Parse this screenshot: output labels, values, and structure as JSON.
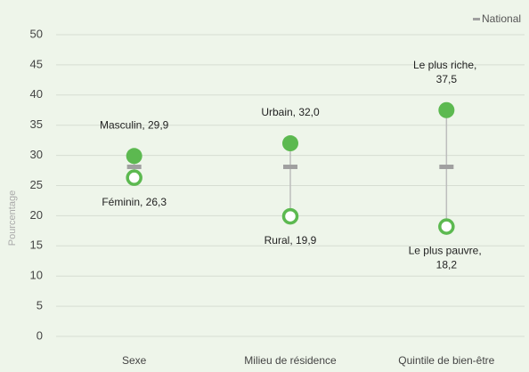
{
  "chart_data": {
    "type": "dot",
    "y_label": "Pourcentage",
    "categories": [
      "Sexe",
      "Milieu de résidence",
      "Quintile de bien-être"
    ],
    "high": {
      "color": "#5cb950",
      "values": [
        29.9,
        32.0,
        37.5
      ],
      "value_labels": [
        "Masculin, 29,9",
        "Urbain, 32,0",
        "Le plus riche, 37,5"
      ]
    },
    "low": {
      "color": "#5cb950",
      "values": [
        26.3,
        19.9,
        18.2
      ],
      "value_labels": [
        "Féminin, 26,3",
        "Rural, 19,9",
        "Le plus pauvre, 18,2"
      ]
    },
    "series": [
      {
        "name": "National",
        "color": "#a0a0a0",
        "values": [
          28.1,
          28.1,
          28.1
        ]
      }
    ],
    "ylim": [
      0,
      50
    ],
    "yticks": [
      0,
      5,
      10,
      15,
      20,
      25,
      30,
      35,
      40,
      45,
      50
    ],
    "grid": true,
    "legend": "top-right"
  }
}
